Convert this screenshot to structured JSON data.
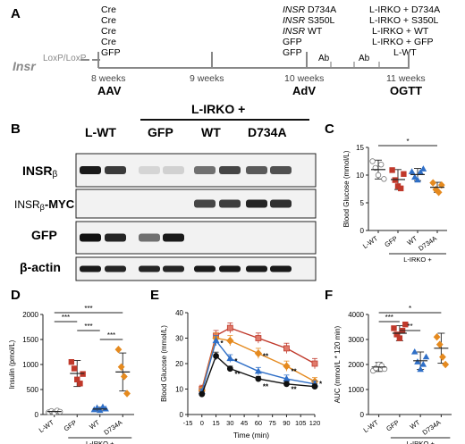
{
  "panel_letters": {
    "a": "A",
    "b": "B",
    "c": "C",
    "d": "D",
    "e": "E",
    "f": "F"
  },
  "timeline": {
    "gene_label": "Insr",
    "lox_label": "LoxP/LoxP",
    "week_labels": [
      "8 weeks",
      "9 weeks",
      "10 weeks",
      "11 weeks"
    ],
    "event_labels": [
      "AAV",
      "AdV",
      "OGTT"
    ],
    "ab_label": "Ab",
    "aav_groups": [
      "Cre",
      "Cre",
      "Cre",
      "Cre",
      "GFP"
    ],
    "adv_groups": [
      "INSR D734A",
      "INSR S350L",
      "INSR WT",
      "GFP",
      "GFP"
    ],
    "ogtt_groups": [
      "L-IRKO + D734A",
      "L-IRKO + S350L",
      "L-IRKO + WT",
      "L-IRKO + GFP",
      "L-WT"
    ]
  },
  "blot": {
    "header_lirko": "L-IRKO +",
    "lanes": [
      "L-WT",
      "GFP",
      "WT",
      "D734A"
    ],
    "rows": [
      "INSRβ",
      "INSRβ-MYC",
      "GFP",
      "β-actin"
    ],
    "row_prefixes": [
      "INSR",
      "INSR",
      "",
      ""
    ],
    "row_subs": [
      "β",
      "β",
      "",
      ""
    ],
    "row_suffixes": [
      "",
      "-MYC",
      "GFP",
      "β-actin"
    ]
  },
  "colors": {
    "lwt": "#b5b5b5",
    "gfp": "#c0392b",
    "wt": "#2f6fc7",
    "d734a": "#e58a1f",
    "black": "#111111"
  },
  "chart_data": [
    {
      "type": "scatter",
      "panel": "C",
      "ylabel": "Blood Glucose (mmol/L)",
      "ylim": [
        0,
        15
      ],
      "yticks": [
        0,
        5,
        10,
        15
      ],
      "categories": [
        "L-WT",
        "GFP",
        "WT",
        "D734A"
      ],
      "group_label": "L-IRKO +",
      "means": [
        11.0,
        9.2,
        10.1,
        7.8
      ],
      "sds": [
        1.7,
        1.8,
        1.1,
        0.9
      ],
      "points": [
        [
          12.5,
          11.3,
          10.0,
          11.9,
          9.3
        ],
        [
          10.9,
          9.1,
          8.0,
          7.6,
          10.2
        ],
        [
          10.6,
          9.6,
          9.1,
          10.5,
          11.1
        ],
        [
          8.6,
          7.4,
          6.9,
          8.2
        ]
      ],
      "sig": [
        {
          "from": 0,
          "to": 3,
          "label": "*"
        }
      ]
    },
    {
      "type": "scatter",
      "panel": "D",
      "ylabel": "Insulin (pmol/L)",
      "ylim": [
        0,
        2000
      ],
      "yticks": [
        0,
        500,
        1000,
        1500,
        2000
      ],
      "categories": [
        "L-WT",
        "GFP",
        "WT",
        "D734A"
      ],
      "group_label": "L-IRKO +",
      "means": [
        60,
        820,
        110,
        850
      ],
      "sds": [
        20,
        260,
        35,
        380
      ],
      "points": [
        [
          45,
          70,
          40,
          80,
          55
        ],
        [
          1050,
          920,
          700,
          620,
          810
        ],
        [
          95,
          130,
          80,
          150,
          110
        ],
        [
          1300,
          950,
          760,
          420
        ]
      ],
      "sig": [
        {
          "from": 0,
          "to": 3,
          "label": "***"
        },
        {
          "from": 0,
          "to": 1,
          "label": "***"
        },
        {
          "from": 1,
          "to": 2,
          "label": "***"
        },
        {
          "from": 2,
          "to": 3,
          "label": "***"
        }
      ]
    },
    {
      "type": "line",
      "panel": "E",
      "xlabel": "Time (min)",
      "ylabel": "Blood Glucose (mmol/L)",
      "xlim": [
        -15,
        120
      ],
      "ylim": [
        0,
        40
      ],
      "xticks": [
        -15,
        0,
        15,
        30,
        45,
        60,
        75,
        90,
        105,
        120
      ],
      "yticks": [
        0,
        10,
        20,
        30,
        40
      ],
      "x": [
        0,
        15,
        30,
        60,
        90,
        120
      ],
      "series": [
        {
          "color": "#c0392b",
          "marker": "square",
          "values": [
            10,
            31,
            34,
            30,
            26,
            20
          ],
          "err": [
            1.5,
            2,
            2,
            2,
            2,
            2
          ]
        },
        {
          "color": "#e58a1f",
          "marker": "diamond",
          "values": [
            9.5,
            30,
            29,
            24,
            19,
            13
          ],
          "err": [
            1.2,
            2,
            2,
            2,
            2,
            1.5
          ]
        },
        {
          "color": "#2f6fc7",
          "marker": "triangle",
          "values": [
            9,
            29,
            22,
            17,
            14,
            12
          ],
          "err": [
            1,
            2,
            1.5,
            1.5,
            1.5,
            1.2
          ]
        },
        {
          "color": "#111111",
          "marker": "circle",
          "values": [
            8,
            23,
            18,
            14,
            12,
            11
          ],
          "err": [
            0.8,
            1.5,
            1,
            1,
            1,
            1
          ]
        }
      ],
      "annotations": [
        {
          "x": 15,
          "y": 27,
          "label": "*"
        },
        {
          "x": 30,
          "y": 20,
          "label": "*"
        },
        {
          "x": 30,
          "y": 15,
          "label": "**"
        },
        {
          "x": 60,
          "y": 22,
          "label": "**"
        },
        {
          "x": 60,
          "y": 10,
          "label": "**"
        },
        {
          "x": 90,
          "y": 16,
          "label": "**"
        },
        {
          "x": 90,
          "y": 9,
          "label": "**"
        },
        {
          "x": 120,
          "y": 11,
          "label": "*"
        }
      ]
    },
    {
      "type": "scatter",
      "panel": "F",
      "ylabel": "AUC (mmol/L * 120 min)",
      "ylim": [
        0,
        4000
      ],
      "yticks": [
        0,
        1000,
        2000,
        3000,
        4000
      ],
      "categories": [
        "L-WT",
        "GFP",
        "WT",
        "D734A"
      ],
      "group_label": "L-IRKO +",
      "means": [
        1900,
        3250,
        2150,
        2650
      ],
      "sds": [
        180,
        300,
        350,
        600
      ],
      "points": [
        [
          1750,
          1850,
          2000,
          1950,
          1820
        ],
        [
          3450,
          3200,
          3050,
          3350,
          3600
        ],
        [
          2500,
          2100,
          1800,
          2000,
          2300
        ],
        [
          3100,
          2800,
          2300,
          2000
        ]
      ],
      "sig": [
        {
          "from": 0,
          "to": 3,
          "label": "*"
        },
        {
          "from": 0,
          "to": 1,
          "label": "***"
        },
        {
          "from": 1,
          "to": 2,
          "label": "**"
        }
      ]
    }
  ]
}
